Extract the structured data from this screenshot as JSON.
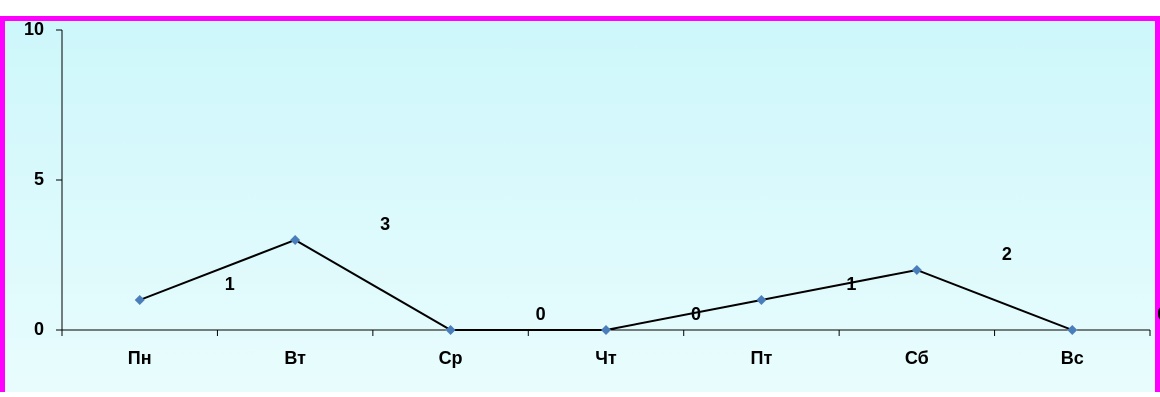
{
  "chart_data": {
    "type": "line",
    "categories": [
      "Пн",
      "Вт",
      "Ср",
      "Чт",
      "Пт",
      "Сб",
      "Вс"
    ],
    "values": [
      1,
      3,
      0,
      0,
      1,
      2,
      0
    ],
    "color": "#000000",
    "marker_color": "#4a7ebb",
    "ylim": [
      0,
      10
    ],
    "yticks": [
      0,
      5,
      10
    ],
    "grid": false
  }
}
